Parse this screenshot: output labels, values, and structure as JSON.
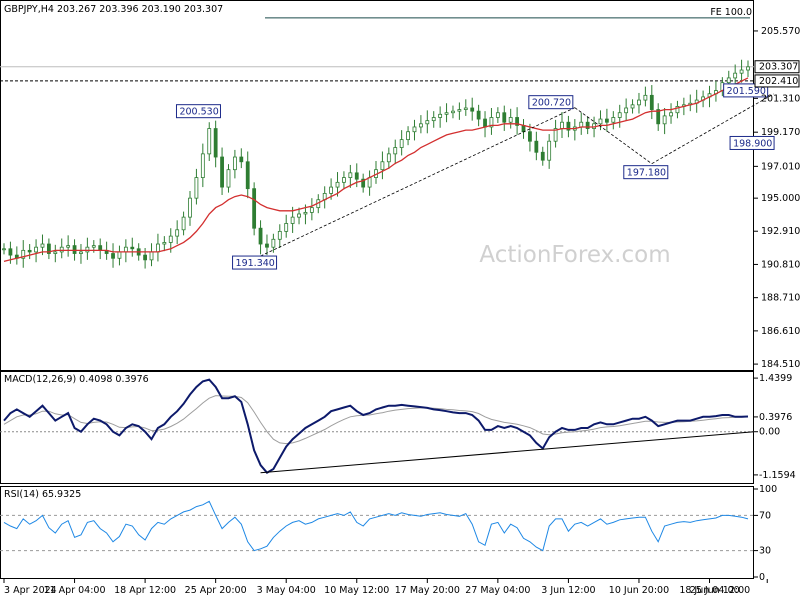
{
  "chart_data": {
    "type": "candlestick",
    "main_panel": {
      "header": "GBPJPY,H4  203.267 203.396 203.190 203.307",
      "watermark": "ActionForex.com",
      "y_ticks": [
        "205.570",
        "203.307",
        "202.410",
        "201.310",
        "199.170",
        "197.010",
        "195.000",
        "192.910",
        "190.810",
        "188.710",
        "186.610",
        "184.510"
      ],
      "y_tick_values": [
        205.57,
        201.31,
        199.17,
        197.01,
        195.0,
        192.91,
        190.81,
        188.71,
        186.61,
        184.51
      ],
      "ylim": [
        184.2,
        207.4
      ],
      "current_price": {
        "label": "203.307",
        "value": 203.307
      },
      "support_line": {
        "label": "202.410",
        "value": 202.41
      },
      "fe_level": {
        "label": "FE 100.0",
        "value": 206.4
      },
      "annotations": [
        {
          "label": "200.530",
          "x": 35,
          "y": 200.53
        },
        {
          "label": "191.340",
          "x": 40,
          "y": 191.34
        },
        {
          "label": "200.720",
          "x": 89,
          "y": 200.72
        },
        {
          "label": "197.180",
          "x": 101,
          "y": 197.18
        },
        {
          "label": "201.590",
          "x": 120,
          "y": 201.59
        },
        {
          "label": "198.900",
          "x": 121,
          "y": 198.9
        }
      ],
      "close_series": [
        191.8,
        191.4,
        191.2,
        191.7,
        191.6,
        191.9,
        192.1,
        191.5,
        191.6,
        191.9,
        192.0,
        191.5,
        191.6,
        191.9,
        192.0,
        191.7,
        191.5,
        191.2,
        191.6,
        191.9,
        191.8,
        191.4,
        191.1,
        191.6,
        192.1,
        192.2,
        192.6,
        193.0,
        193.8,
        195.0,
        196.3,
        197.8,
        199.4,
        197.6,
        195.7,
        196.8,
        197.6,
        197.3,
        195.6,
        193.1,
        192.1,
        191.9,
        192.4,
        192.9,
        193.4,
        193.8,
        194.0,
        194.1,
        194.4,
        194.9,
        195.3,
        195.7,
        196.0,
        196.3,
        196.6,
        196.2,
        195.7,
        196.3,
        196.8,
        197.3,
        197.8,
        198.2,
        198.7,
        199.2,
        199.5,
        199.7,
        199.9,
        200.1,
        200.3,
        200.4,
        200.5,
        200.6,
        200.7,
        200.5,
        200.0,
        199.5,
        200.1,
        200.4,
        199.8,
        200.1,
        199.6,
        199.2,
        198.6,
        197.9,
        197.4,
        198.6,
        199.4,
        199.8,
        199.3,
        199.5,
        199.8,
        199.4,
        199.7,
        200.0,
        199.8,
        200.1,
        200.4,
        200.7,
        200.9,
        201.2,
        201.5,
        200.6,
        199.7,
        200.2,
        200.4,
        200.8,
        200.9,
        201.0,
        201.2,
        201.4,
        201.6,
        201.8,
        202.3,
        202.6,
        202.9,
        203.1,
        203.3
      ],
      "ma_series": [
        191.0,
        191.1,
        191.2,
        191.3,
        191.4,
        191.5,
        191.6,
        191.6,
        191.7,
        191.7,
        191.7,
        191.7,
        191.7,
        191.7,
        191.7,
        191.7,
        191.7,
        191.6,
        191.6,
        191.6,
        191.6,
        191.6,
        191.6,
        191.6,
        191.6,
        191.7,
        191.8,
        192.0,
        192.2,
        192.5,
        192.9,
        193.4,
        194.0,
        194.4,
        194.6,
        194.9,
        195.1,
        195.2,
        195.1,
        194.9,
        194.6,
        194.4,
        194.3,
        194.2,
        194.2,
        194.2,
        194.3,
        194.4,
        194.5,
        194.7,
        194.9,
        195.1,
        195.3,
        195.6,
        195.8,
        196.0,
        196.1,
        196.3,
        196.5,
        196.7,
        196.9,
        197.2,
        197.4,
        197.7,
        197.9,
        198.2,
        198.4,
        198.6,
        198.8,
        199.0,
        199.1,
        199.2,
        199.3,
        199.3,
        199.4,
        199.5,
        199.6,
        199.6,
        199.7,
        199.7,
        199.7,
        199.6,
        199.5,
        199.4,
        199.3,
        199.3,
        199.3,
        199.4,
        199.4,
        199.4,
        199.5,
        199.5,
        199.5,
        199.6,
        199.6,
        199.7,
        199.8,
        199.9,
        200.0,
        200.2,
        200.4,
        200.5,
        200.5,
        200.6,
        200.6,
        200.7,
        200.8,
        200.9,
        201.0,
        201.2,
        201.4,
        201.6,
        201.8,
        202.0,
        202.2,
        202.4,
        202.6
      ],
      "colors": {
        "candles": "#2e7d32",
        "ma": "#d32f2f",
        "fe_line": "#1a4a4a",
        "annotation": "#1c2a8a"
      }
    },
    "macd_panel": {
      "header": "MACD(12,26,9) 0.4098 0.3976",
      "y_ticks": [
        "1.4399",
        "0.3976",
        "0.00",
        "-1.1594"
      ],
      "ylim": [
        -1.35,
        1.55
      ],
      "macd_series": [
        0.3,
        0.5,
        0.6,
        0.5,
        0.4,
        0.55,
        0.7,
        0.5,
        0.3,
        0.4,
        0.5,
        0.1,
        0.0,
        0.2,
        0.35,
        0.3,
        0.2,
        0.0,
        -0.1,
        0.1,
        0.2,
        0.15,
        0.0,
        -0.2,
        0.1,
        0.2,
        0.4,
        0.55,
        0.75,
        1.0,
        1.2,
        1.35,
        1.4,
        1.2,
        0.9,
        0.9,
        0.95,
        0.8,
        0.2,
        -0.5,
        -0.9,
        -1.1,
        -1.0,
        -0.7,
        -0.4,
        -0.2,
        -0.05,
        0.1,
        0.2,
        0.3,
        0.4,
        0.55,
        0.6,
        0.65,
        0.7,
        0.55,
        0.45,
        0.5,
        0.6,
        0.65,
        0.7,
        0.7,
        0.72,
        0.7,
        0.68,
        0.66,
        0.64,
        0.6,
        0.58,
        0.55,
        0.52,
        0.5,
        0.5,
        0.45,
        0.3,
        0.05,
        0.05,
        0.15,
        0.1,
        0.15,
        0.1,
        0.0,
        -0.1,
        -0.3,
        -0.45,
        -0.15,
        0.0,
        0.1,
        0.05,
        0.05,
        0.1,
        0.1,
        0.2,
        0.25,
        0.2,
        0.2,
        0.25,
        0.3,
        0.35,
        0.35,
        0.4,
        0.3,
        0.15,
        0.2,
        0.25,
        0.3,
        0.3,
        0.3,
        0.35,
        0.4,
        0.4,
        0.42,
        0.45,
        0.45,
        0.4,
        0.4,
        0.41
      ],
      "signal_series": [
        0.2,
        0.3,
        0.4,
        0.45,
        0.45,
        0.48,
        0.55,
        0.55,
        0.48,
        0.45,
        0.46,
        0.35,
        0.25,
        0.22,
        0.25,
        0.27,
        0.26,
        0.2,
        0.12,
        0.11,
        0.13,
        0.14,
        0.1,
        0.03,
        0.04,
        0.07,
        0.14,
        0.23,
        0.34,
        0.48,
        0.62,
        0.77,
        0.9,
        0.97,
        0.96,
        0.95,
        0.95,
        0.92,
        0.78,
        0.53,
        0.25,
        0.0,
        -0.2,
        -0.3,
        -0.32,
        -0.3,
        -0.25,
        -0.18,
        -0.1,
        -0.02,
        0.06,
        0.16,
        0.25,
        0.33,
        0.4,
        0.43,
        0.44,
        0.45,
        0.48,
        0.51,
        0.55,
        0.58,
        0.6,
        0.62,
        0.63,
        0.64,
        0.64,
        0.63,
        0.62,
        0.6,
        0.59,
        0.57,
        0.56,
        0.54,
        0.49,
        0.4,
        0.33,
        0.29,
        0.25,
        0.23,
        0.2,
        0.16,
        0.11,
        0.03,
        -0.06,
        -0.08,
        -0.06,
        -0.03,
        -0.01,
        0.0,
        0.02,
        0.04,
        0.07,
        0.11,
        0.13,
        0.14,
        0.16,
        0.19,
        0.22,
        0.25,
        0.28,
        0.28,
        0.26,
        0.25,
        0.25,
        0.26,
        0.27,
        0.28,
        0.29,
        0.31,
        0.33,
        0.35,
        0.37,
        0.38,
        0.39,
        0.39,
        0.4
      ],
      "trendline": {
        "from": {
          "x": 40,
          "y": -1.1
        },
        "to": {
          "x": 116,
          "y": 0.0
        }
      },
      "colors": {
        "macd": "#0d1a6b",
        "signal": "#9e9e9e",
        "zero": "#8a8a8a"
      }
    },
    "rsi_panel": {
      "header": "RSI(14) 65.9325",
      "y_ticks": [
        "100",
        "70",
        "30",
        "0"
      ],
      "ylim": [
        0,
        100
      ],
      "levels": [
        70,
        30
      ],
      "rsi_series": [
        62,
        58,
        55,
        66,
        60,
        64,
        70,
        56,
        50,
        60,
        64,
        45,
        48,
        62,
        64,
        55,
        50,
        40,
        46,
        60,
        58,
        48,
        42,
        55,
        62,
        60,
        66,
        70,
        74,
        76,
        80,
        82,
        86,
        70,
        55,
        62,
        68,
        60,
        40,
        30,
        32,
        35,
        45,
        52,
        58,
        62,
        64,
        60,
        62,
        66,
        68,
        70,
        72,
        70,
        74,
        62,
        58,
        66,
        68,
        70,
        72,
        70,
        73,
        71,
        70,
        69,
        71,
        72,
        73,
        71,
        70,
        69,
        72,
        60,
        40,
        36,
        60,
        62,
        50,
        60,
        56,
        44,
        40,
        34,
        30,
        58,
        66,
        66,
        52,
        60,
        62,
        58,
        62,
        66,
        60,
        62,
        65,
        66,
        67,
        68,
        68,
        52,
        40,
        58,
        60,
        62,
        63,
        62,
        64,
        65,
        66,
        67,
        70,
        70,
        69,
        68,
        66
      ],
      "colors": {
        "rsi": "#1e88e5",
        "levels": "#999999"
      }
    },
    "x_axis": {
      "labels": [
        "3 Apr 2024",
        "11 Apr 04:00",
        "18 Apr 12:00",
        "25 Apr 20:00",
        "3 May 04:00",
        "10 May 12:00",
        "17 May 20:00",
        "27 May 04:00",
        "3 Jun 12:00",
        "10 Jun 20:00",
        "18 Jun 04:00",
        "25 Jun 12:00"
      ],
      "label_x": [
        0,
        11,
        22,
        33,
        44,
        55,
        66,
        77,
        88,
        99,
        110,
        119
      ]
    }
  }
}
